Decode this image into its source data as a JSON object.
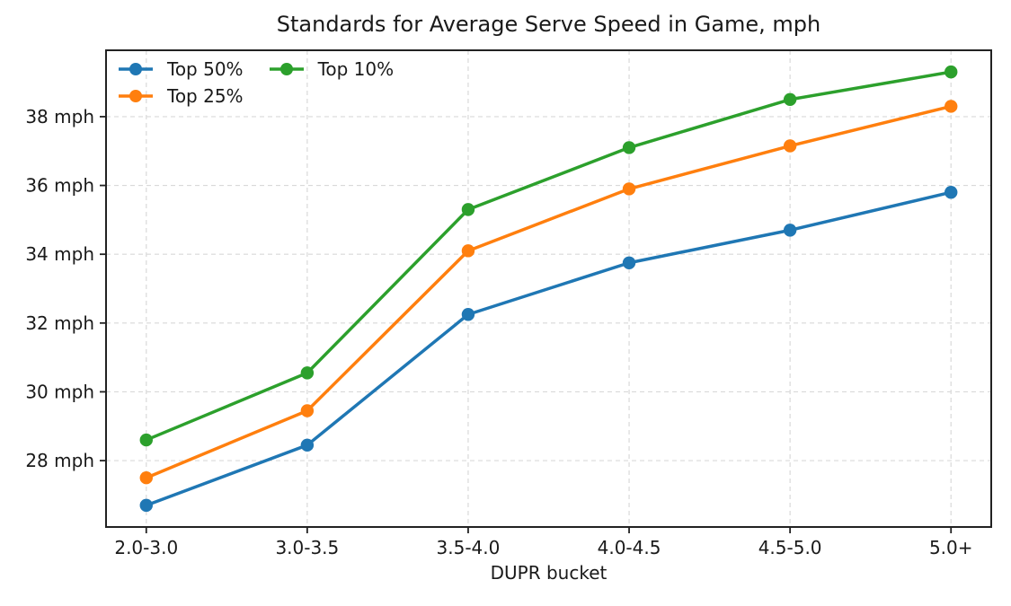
{
  "chart_data": {
    "type": "line",
    "title": "Standards for Average Serve Speed in Game, mph",
    "xlabel": "DUPR bucket",
    "ylabel": "",
    "categories": [
      "2.0-3.0",
      "3.0-3.5",
      "3.5-4.0",
      "4.0-4.5",
      "4.5-5.0",
      "5.0+"
    ],
    "series": [
      {
        "name": "Top 50%",
        "color": "#1f77b4",
        "values": [
          26.7,
          28.45,
          32.25,
          33.75,
          34.7,
          35.8
        ]
      },
      {
        "name": "Top 25%",
        "color": "#ff7f0e",
        "values": [
          27.5,
          29.45,
          34.1,
          35.9,
          37.15,
          38.3
        ]
      },
      {
        "name": "Top 10%",
        "color": "#2ca02c",
        "values": [
          28.6,
          30.55,
          35.3,
          37.1,
          38.5,
          39.3
        ]
      }
    ],
    "yticks": [
      {
        "value": 28,
        "label": "28 mph"
      },
      {
        "value": 30,
        "label": "30 mph"
      },
      {
        "value": 32,
        "label": "32 mph"
      },
      {
        "value": 34,
        "label": "34 mph"
      },
      {
        "value": 36,
        "label": "36 mph"
      },
      {
        "value": 38,
        "label": "38 mph"
      }
    ],
    "ylim": [
      26.07,
      39.93
    ],
    "grid": true,
    "grid_style": "dashed",
    "legend_position": "upper left",
    "marker": "circle",
    "axis_color": "#222222",
    "grid_color": "#d9d9d9",
    "text_color": "#1a1a1a",
    "background_color": "#ffffff"
  }
}
